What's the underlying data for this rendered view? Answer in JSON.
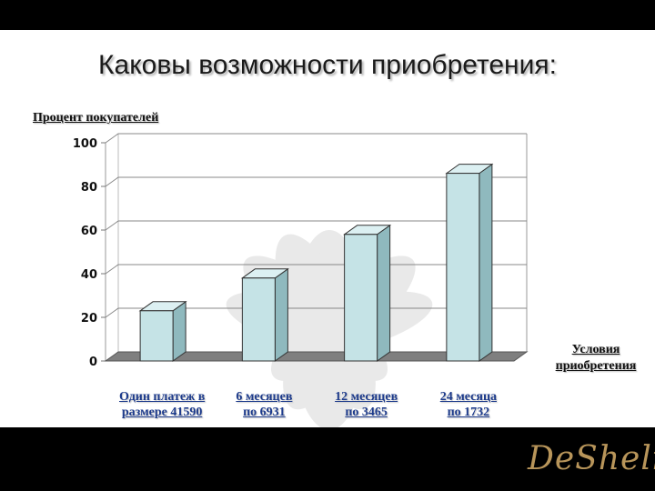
{
  "slide": {
    "title": "Каковы возможности приобретения:",
    "logo_text": "DeSheli"
  },
  "colors": {
    "bar_front": "#c5e3e6",
    "bar_side": "#8fb9be",
    "bar_top": "#dcf0f2",
    "floor": "#7f7f7f",
    "category_text": "#1d3b8c",
    "logo": "#b8955a"
  },
  "chart_data": {
    "type": "bar",
    "title": "",
    "ylabel": "Процент покупателей",
    "xlabel": "Условия приобретения",
    "ylim": [
      0,
      100
    ],
    "yticks": [
      "0",
      "20",
      "40",
      "60",
      "80",
      "100"
    ],
    "grid": true,
    "categories": [
      [
        "Один платеж в",
        "размере 41590"
      ],
      [
        "6 месяцев",
        "по 6931"
      ],
      [
        "12 месяцев",
        "по 3465"
      ],
      [
        "24 месяца",
        "по 1732"
      ]
    ],
    "values": [
      23,
      38,
      58,
      86
    ]
  }
}
